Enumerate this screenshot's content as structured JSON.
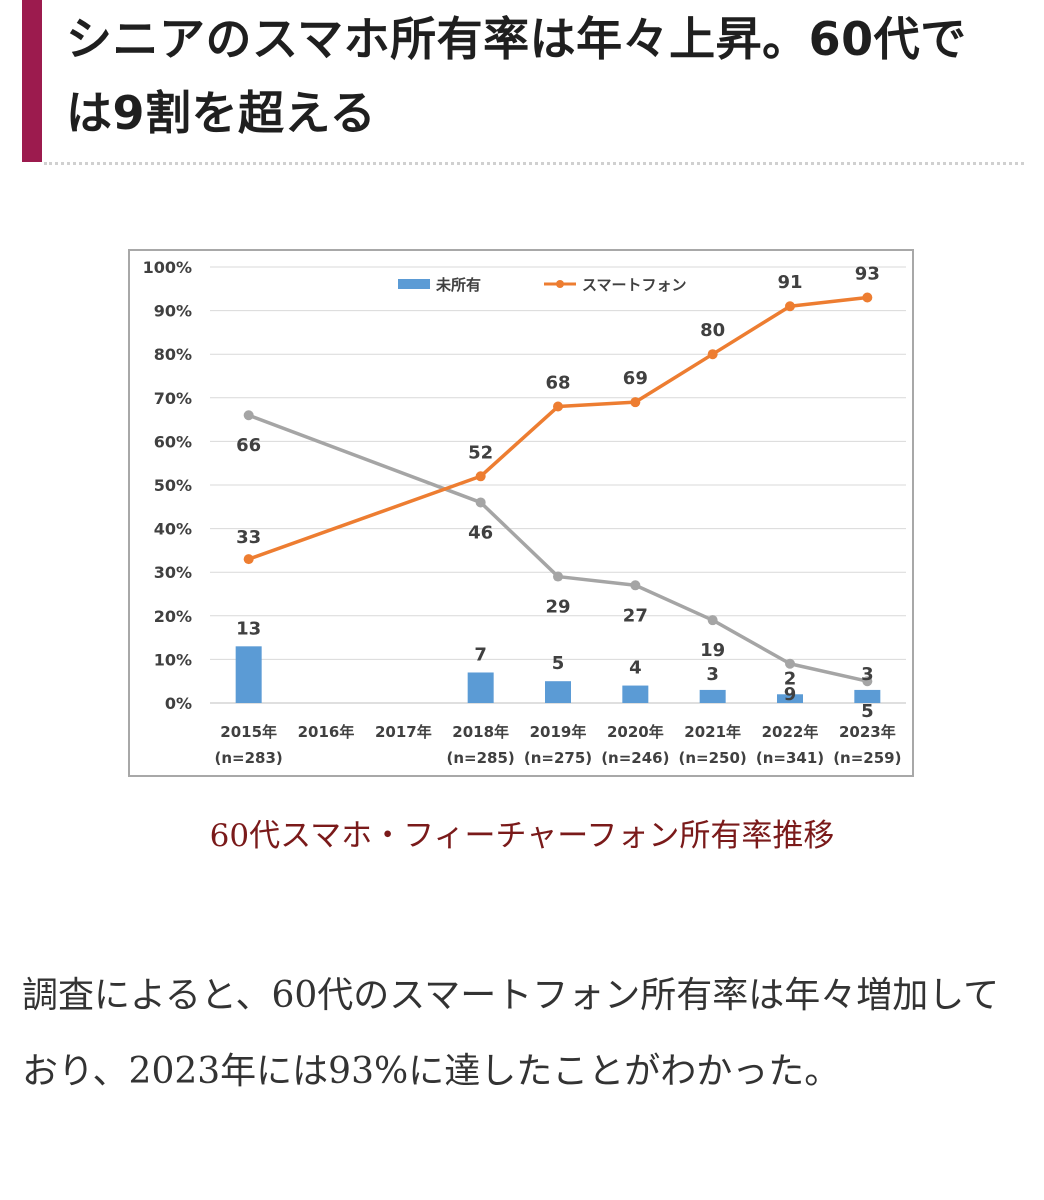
{
  "heading": {
    "text": "シニアのスマホ所有率は年々上昇。60代では9割を超える"
  },
  "caption": "60代スマホ・フィーチャーフォン所有率推移",
  "body_text": "調査によると、60代のスマートフォン所有率は年々増加しており、2023年には93%に達したことがわかった。",
  "colors": {
    "heading_bar": "#9c1b4e",
    "caption": "#7a1a1a",
    "bar": "#5b9bd5",
    "smartphone_line": "#ed7d31",
    "feature_phone_line": "#a5a5a5"
  },
  "chart_data": {
    "type": "bar+line",
    "categories": [
      "2015年",
      "2016年",
      "2017年",
      "2018年",
      "2019年",
      "2020年",
      "2021年",
      "2022年",
      "2023年"
    ],
    "category_sublabels": [
      "(n=283)",
      "",
      "",
      "(n=285)",
      "(n=275)",
      "(n=246)",
      "(n=250)",
      "(n=341)",
      "(n=259)"
    ],
    "ylim": [
      0,
      100
    ],
    "yticks": [
      "0%",
      "10%",
      "20%",
      "30%",
      "40%",
      "50%",
      "60%",
      "70%",
      "80%",
      "90%",
      "100%"
    ],
    "grid": true,
    "legend_position": "top",
    "series": [
      {
        "name": "未所有",
        "kind": "bar",
        "values": [
          13,
          null,
          null,
          7,
          5,
          4,
          3,
          2,
          3
        ],
        "labels": [
          "13",
          "",
          "",
          "7",
          "5",
          "4",
          "3",
          "2",
          "3"
        ]
      },
      {
        "name": "スマートフォン",
        "kind": "line",
        "values": [
          33,
          null,
          null,
          52,
          68,
          69,
          80,
          91,
          93
        ],
        "labels": [
          "33",
          "",
          "",
          "52",
          "68",
          "69",
          "80",
          "91",
          "93"
        ]
      },
      {
        "kind": "line",
        "values": [
          66,
          null,
          null,
          46,
          29,
          27,
          19,
          9,
          5
        ],
        "labels": [
          "66",
          "",
          "",
          "46",
          "29",
          "27",
          "19",
          "9",
          "5"
        ]
      }
    ]
  }
}
